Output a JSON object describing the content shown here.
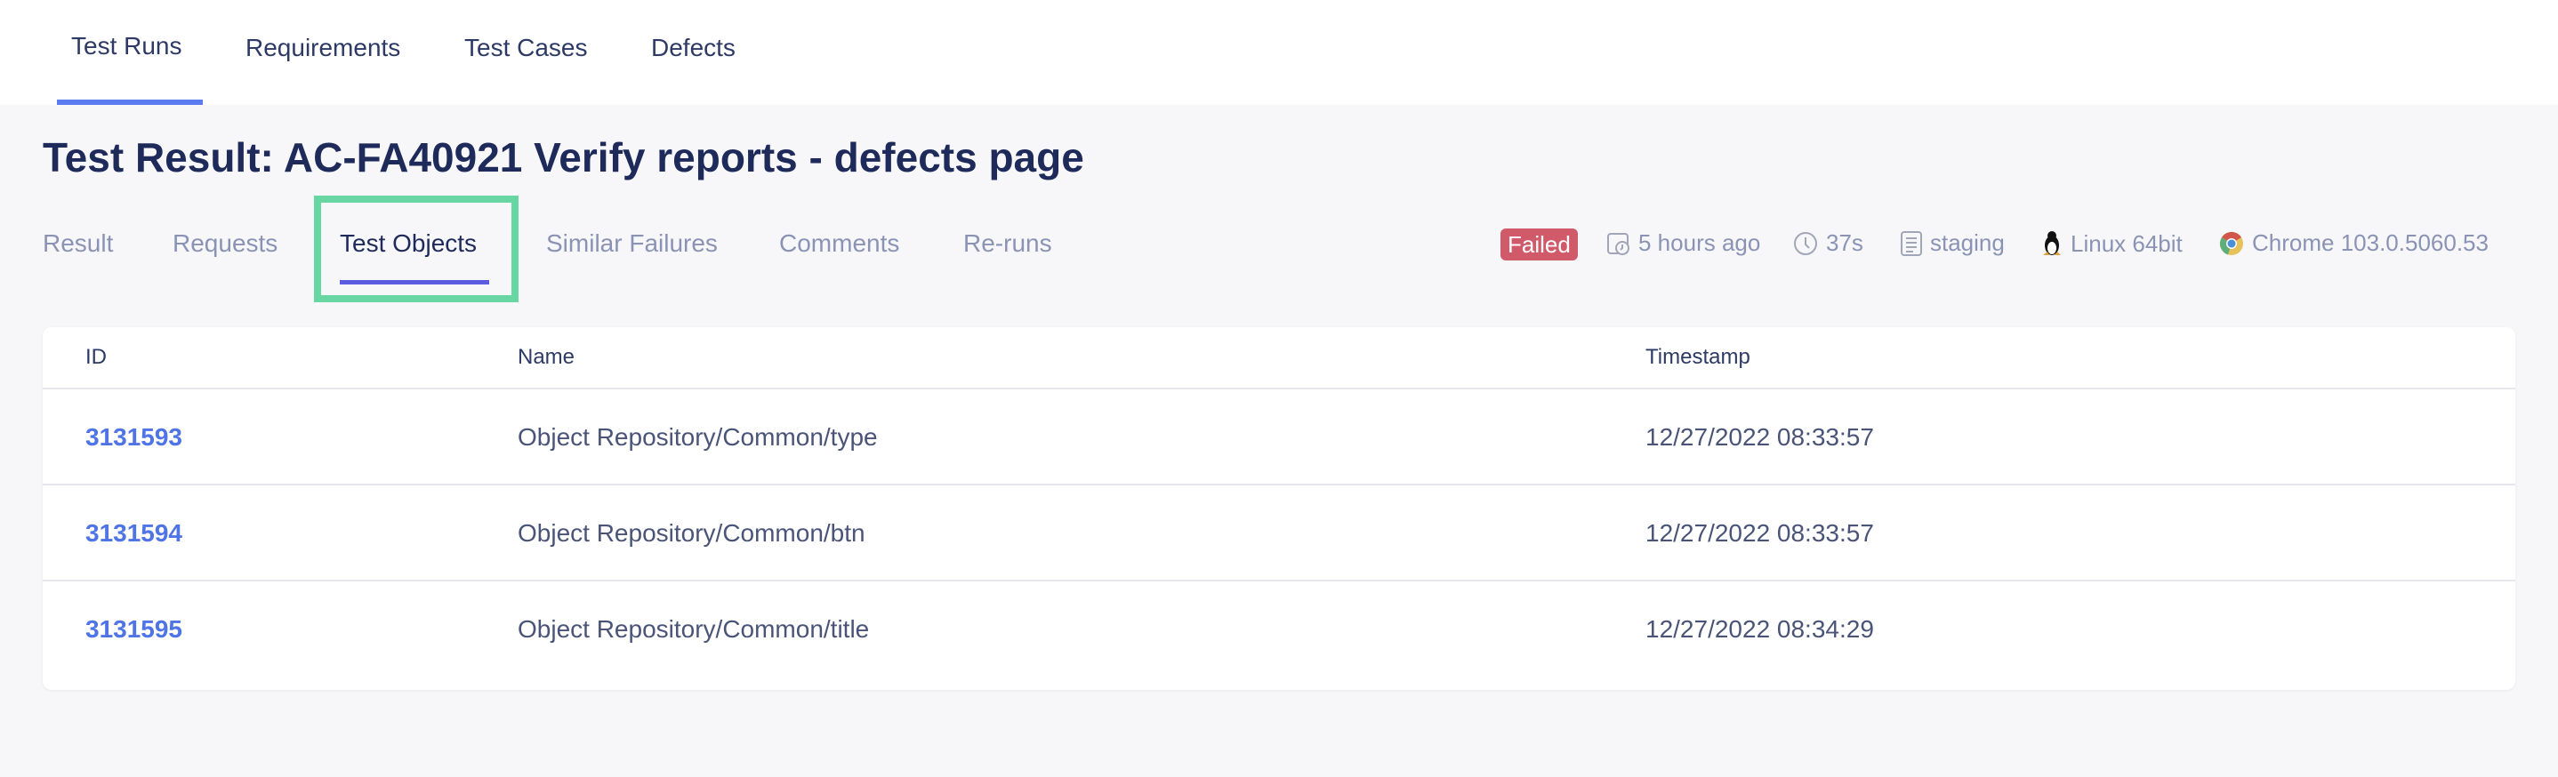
{
  "top_nav": {
    "tabs": [
      "Test Runs",
      "Requirements",
      "Test Cases",
      "Defects"
    ],
    "active": "Test Runs"
  },
  "title": "Test Result: AC-FA40921 Verify reports - defects page",
  "sub_tabs": [
    "Result",
    "Requests",
    "Test Objects",
    "Similar Failures",
    "Comments",
    "Re-runs"
  ],
  "active_sub_tab": "Test Objects",
  "meta": {
    "status": "Failed",
    "time_ago": "5 hours ago",
    "duration": "37s",
    "environment": "staging",
    "os": "Linux 64bit",
    "browser": "Chrome 103.0.5060.53"
  },
  "colors": {
    "accent": "#5b7cf0",
    "failed": "#d05a6a",
    "highlight": "#67d6a2",
    "link": "#4f74e6"
  },
  "table": {
    "headers": [
      "ID",
      "Name",
      "Timestamp"
    ],
    "rows": [
      {
        "id": "3131593",
        "name": "Object Repository/Common/type",
        "timestamp": "12/27/2022 08:33:57"
      },
      {
        "id": "3131594",
        "name": "Object Repository/Common/btn",
        "timestamp": "12/27/2022 08:33:57"
      },
      {
        "id": "3131595",
        "name": "Object Repository/Common/title",
        "timestamp": "12/27/2022 08:34:29"
      }
    ]
  }
}
